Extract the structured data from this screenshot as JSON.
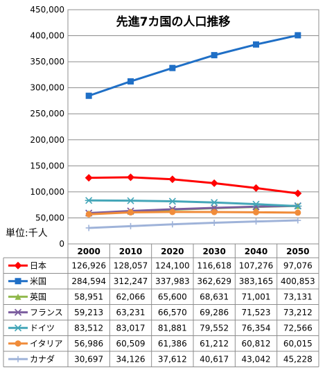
{
  "chart_data": {
    "type": "line",
    "title": "先進7カ国の人口推移",
    "unit_label": "単位:千人",
    "x": [
      "2000",
      "2010",
      "2020",
      "2030",
      "2040",
      "2050"
    ],
    "y_ticks": [
      "0",
      "50,000",
      "100,000",
      "150,000",
      "200,000",
      "250,000",
      "300,000",
      "350,000",
      "400,000",
      "450,000"
    ],
    "ylim": [
      0,
      450000
    ],
    "grid": true,
    "legend": "data-table",
    "series": [
      {
        "name": "日本",
        "color": "#ff0000",
        "marker": "diamond",
        "values": [
          126926,
          128057,
          124100,
          116618,
          107276,
          97076
        ],
        "labels": [
          "126,926",
          "128,057",
          "124,100",
          "116,618",
          "107,276",
          "97,076"
        ]
      },
      {
        "name": "米国",
        "color": "#1f6fc6",
        "marker": "square",
        "values": [
          284594,
          312247,
          337983,
          362629,
          383165,
          400853
        ],
        "labels": [
          "284,594",
          "312,247",
          "337,983",
          "362,629",
          "383,165",
          "400,853"
        ]
      },
      {
        "name": "英国",
        "color": "#8fb84a",
        "marker": "triangle",
        "values": [
          58951,
          62066,
          65600,
          68631,
          71001,
          73131
        ],
        "labels": [
          "58,951",
          "62,066",
          "65,600",
          "68,631",
          "71,001",
          "73,131"
        ]
      },
      {
        "name": "フランス",
        "color": "#7a5c9e",
        "marker": "x",
        "values": [
          59213,
          63231,
          66570,
          69286,
          71523,
          73212
        ],
        "labels": [
          "59,213",
          "63,231",
          "66,570",
          "69,286",
          "71,523",
          "73,212"
        ]
      },
      {
        "name": "ドイツ",
        "color": "#44a6b8",
        "marker": "star",
        "values": [
          83512,
          83017,
          81881,
          79552,
          76354,
          72566
        ],
        "labels": [
          "83,512",
          "83,017",
          "81,881",
          "79,552",
          "76,354",
          "72,566"
        ]
      },
      {
        "name": "イタリア",
        "color": "#f08c3a",
        "marker": "circle",
        "values": [
          56986,
          60509,
          61386,
          61212,
          60812,
          60015
        ],
        "labels": [
          "56,986",
          "60,509",
          "61,386",
          "61,212",
          "60,812",
          "60,015"
        ]
      },
      {
        "name": "カナダ",
        "color": "#9fb3d9",
        "marker": "plus",
        "values": [
          30697,
          34126,
          37612,
          40617,
          43042,
          45228
        ],
        "labels": [
          "30,697",
          "34,126",
          "37,612",
          "40,617",
          "43,042",
          "45,228"
        ]
      }
    ]
  }
}
